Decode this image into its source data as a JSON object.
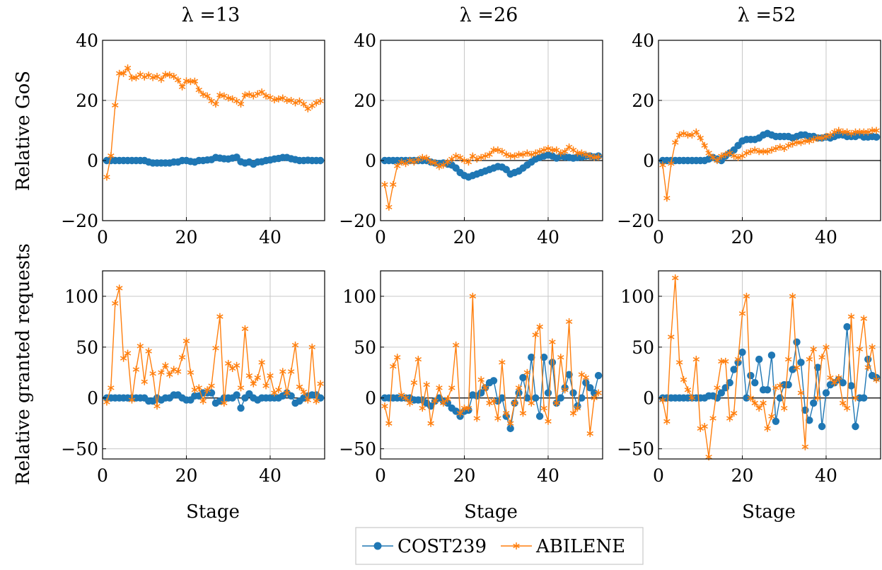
{
  "colors": {
    "cost": "#1f77b4",
    "abilene": "#ff7f0e",
    "grid": "#c8c8c8"
  },
  "legend": {
    "items": [
      "COST239",
      "ABILENE"
    ]
  },
  "chart_data": [
    {
      "type": "line",
      "panel": "gos-13",
      "title": "λ =13",
      "xlabel": "",
      "ylabel": "Relative GoS",
      "xlim": [
        0,
        53
      ],
      "ylim": [
        -20,
        40
      ],
      "xticks": [
        0,
        20,
        40
      ],
      "yticks": [
        -20,
        0,
        20,
        40
      ],
      "grid": true,
      "series": [
        {
          "name": "COST239",
          "x_start": 1,
          "values": [
            0,
            0,
            0,
            0,
            0,
            0,
            0,
            0,
            0,
            0,
            -0.5,
            -0.8,
            -0.8,
            -0.8,
            -0.8,
            -0.8,
            -0.5,
            -0.5,
            0,
            0,
            -0.3,
            -0.5,
            0,
            0,
            0.2,
            0.3,
            1,
            0.8,
            0.6,
            0.5,
            0.8,
            1.1,
            -0.4,
            -0.8,
            -0.5,
            -1.2,
            -0.5,
            -0.4,
            0,
            0.2,
            0.5,
            0.7,
            1,
            1,
            0.6,
            0.3,
            0,
            0,
            0.1,
            0,
            0,
            0
          ]
        },
        {
          "name": "ABILENE",
          "x_start": 1,
          "values": [
            -5.5,
            1.6,
            18.4,
            29,
            29,
            30.8,
            27.5,
            27.6,
            28.6,
            27.8,
            28.4,
            27.6,
            28,
            27,
            28.6,
            28.5,
            28,
            26.8,
            24.5,
            26.5,
            26.3,
            26.4,
            23.5,
            22,
            21.5,
            19.8,
            18.8,
            21.8,
            21.5,
            20.8,
            20.5,
            19.8,
            18.8,
            21.8,
            22,
            21.5,
            22.2,
            22.8,
            21.5,
            21,
            20.2,
            20.5,
            20.8,
            20,
            20,
            19.2,
            19.8,
            18.8,
            17.2,
            18.2,
            19.2,
            19.8
          ]
        }
      ]
    },
    {
      "type": "line",
      "panel": "gos-26",
      "title": "λ =26",
      "xlabel": "",
      "ylabel": "",
      "xlim": [
        0,
        53
      ],
      "ylim": [
        -20,
        40
      ],
      "xticks": [
        0,
        20,
        40
      ],
      "yticks": [
        -20,
        0,
        20,
        40
      ],
      "grid": true,
      "series": [
        {
          "name": "COST239",
          "x_start": 1,
          "values": [
            0,
            0,
            0,
            0,
            0,
            0,
            0,
            0,
            0,
            0,
            0,
            -0.5,
            -0.8,
            -1,
            -0.8,
            -1.2,
            -1.5,
            -2.5,
            -4,
            -5,
            -5.5,
            -5,
            -4.5,
            -4,
            -3.5,
            -3,
            -2.5,
            -2,
            -2.2,
            -3,
            -4.5,
            -4,
            -3.5,
            -2.5,
            -1.5,
            -0.5,
            0.5,
            1,
            1.5,
            1.8,
            1.5,
            0.8,
            1.5,
            1.2,
            1,
            0.8,
            1,
            1.2,
            1.5,
            1.5,
            1.2,
            1.5
          ]
        },
        {
          "name": "ABILENE",
          "x_start": 1,
          "values": [
            -8,
            -15.5,
            -8,
            -1.8,
            -0.5,
            -1,
            0,
            -0.5,
            0.3,
            1,
            0.8,
            -0.5,
            -0.8,
            -2,
            -1.5,
            -0.5,
            0.5,
            1.5,
            1,
            0,
            -0.5,
            1.5,
            0.5,
            1,
            1.5,
            2,
            3.5,
            3.5,
            3,
            2,
            1.5,
            1.5,
            2,
            2,
            2.5,
            2,
            2.5,
            3,
            3.5,
            4,
            3.5,
            3.5,
            2.5,
            3,
            4.5,
            3.5,
            2.5,
            2.5,
            2,
            1.5,
            1,
            1.2
          ]
        }
      ]
    },
    {
      "type": "line",
      "panel": "gos-52",
      "title": "λ =52",
      "xlabel": "",
      "ylabel": "",
      "xlim": [
        0,
        53
      ],
      "ylim": [
        -20,
        40
      ],
      "xticks": [
        0,
        20,
        40
      ],
      "yticks": [
        -20,
        0,
        20,
        40
      ],
      "grid": true,
      "series": [
        {
          "name": "COST239",
          "x_start": 1,
          "values": [
            0,
            0,
            0,
            0,
            0,
            0,
            0,
            0,
            0,
            0,
            0,
            0.5,
            1,
            0.5,
            0,
            1.5,
            2.5,
            3.5,
            5,
            6.5,
            7,
            7,
            7,
            7.5,
            8.5,
            9,
            8.5,
            8,
            8,
            8,
            8,
            7.5,
            8,
            8.5,
            8.5,
            8,
            8,
            7.5,
            7.5,
            7.8,
            7.5,
            8,
            8.5,
            8.5,
            8,
            8,
            8,
            8.5,
            7.8,
            7.8,
            8,
            7.8
          ]
        },
        {
          "name": "ABILENE",
          "x_start": 1,
          "values": [
            -1.5,
            -12.5,
            -1,
            6,
            8.5,
            9,
            8.5,
            8.5,
            9.5,
            7.5,
            5,
            2.5,
            1,
            0,
            1.5,
            2,
            2.5,
            1.5,
            1,
            1.5,
            2.5,
            3,
            3.5,
            3,
            3,
            3,
            3.5,
            4,
            4.5,
            4,
            5,
            5.5,
            6,
            6,
            6.5,
            6.5,
            7,
            7.5,
            7.5,
            8,
            8.5,
            9.5,
            10,
            9.5,
            9.5,
            9,
            9.5,
            9.5,
            9.5,
            9.5,
            10,
            10
          ]
        }
      ]
    },
    {
      "type": "line",
      "panel": "req-13",
      "title": "",
      "xlabel": "Stage",
      "ylabel": "Relative granted requests",
      "xlim": [
        0,
        53
      ],
      "ylim": [
        -60,
        125
      ],
      "xticks": [
        0,
        20,
        40
      ],
      "yticks": [
        -50,
        0,
        50,
        100
      ],
      "grid": true,
      "series": [
        {
          "name": "COST239",
          "x_start": 1,
          "values": [
            0,
            0,
            0,
            0,
            0,
            0,
            0,
            0,
            0,
            0,
            -3,
            -3,
            0,
            -2,
            0,
            0,
            3,
            3,
            0,
            -2,
            -2,
            2,
            2,
            5,
            5,
            5,
            -5,
            -3,
            0,
            0,
            0,
            3,
            -10,
            0,
            4,
            0,
            -2,
            0,
            0,
            0,
            0,
            0,
            2,
            5,
            2,
            -5,
            -3,
            0,
            2,
            3,
            3,
            0
          ]
        },
        {
          "name": "ABILENE",
          "x_start": 1,
          "values": [
            -4,
            10,
            93,
            108,
            39,
            44,
            -2,
            28,
            51,
            16,
            46,
            24,
            -8,
            25,
            32,
            23,
            28,
            26,
            40,
            56,
            25,
            8,
            10,
            -3,
            8,
            12,
            49,
            80,
            -5,
            34,
            29,
            32,
            10,
            68,
            22,
            14,
            20,
            35,
            12,
            22,
            5,
            8,
            26,
            5,
            26,
            52,
            11,
            6,
            -2,
            50,
            -3,
            14
          ]
        }
      ]
    },
    {
      "type": "line",
      "panel": "req-26",
      "title": "",
      "xlabel": "Stage",
      "ylabel": "",
      "xlim": [
        0,
        53
      ],
      "ylim": [
        -60,
        125
      ],
      "xticks": [
        0,
        20,
        40
      ],
      "yticks": [
        -50,
        0,
        50,
        100
      ],
      "grid": true,
      "series": [
        {
          "name": "COST239",
          "x_start": 1,
          "values": [
            0,
            0,
            0,
            0,
            0,
            0,
            0,
            -2,
            -2,
            -2,
            -5,
            -8,
            -3,
            0,
            -3,
            -5,
            -10,
            -13,
            -18,
            -13,
            -12,
            3,
            2,
            5,
            10,
            15,
            17,
            -3,
            0,
            -18,
            -30,
            -5,
            5,
            20,
            0,
            40,
            0,
            -18,
            40,
            5,
            35,
            -5,
            0,
            10,
            23,
            5,
            -8,
            0,
            15,
            10,
            5,
            22
          ]
        },
        {
          "name": "ABILENE",
          "x_start": 1,
          "values": [
            -8,
            -25,
            31,
            40,
            3,
            0,
            -5,
            15,
            38,
            -10,
            13,
            -25,
            -3,
            10,
            -5,
            -1,
            10,
            52,
            -15,
            -10,
            -10,
            100,
            -20,
            18,
            10,
            -5,
            -3,
            -20,
            35,
            -15,
            -25,
            -5,
            10,
            -15,
            25,
            -5,
            62,
            70,
            -10,
            -23,
            55,
            -5,
            40,
            8,
            75,
            -15,
            -10,
            23,
            20,
            -35,
            0,
            5
          ]
        }
      ]
    },
    {
      "type": "line",
      "panel": "req-52",
      "title": "",
      "xlabel": "Stage",
      "ylabel": "",
      "xlim": [
        0,
        53
      ],
      "ylim": [
        -60,
        125
      ],
      "xticks": [
        0,
        20,
        40
      ],
      "yticks": [
        -50,
        0,
        50,
        100
      ],
      "grid": true,
      "series": [
        {
          "name": "COST239",
          "x_start": 1,
          "values": [
            0,
            0,
            0,
            0,
            0,
            0,
            0,
            0,
            0,
            0,
            0,
            2,
            2,
            0,
            5,
            10,
            15,
            28,
            35,
            45,
            0,
            22,
            15,
            38,
            8,
            8,
            42,
            -23,
            0,
            13,
            13,
            28,
            55,
            35,
            -12,
            -22,
            -5,
            30,
            -28,
            5,
            13,
            15,
            18,
            15,
            70,
            12,
            -28,
            0,
            0,
            38,
            22,
            20
          ]
        },
        {
          "name": "ABILENE",
          "x_start": 1,
          "values": [
            -2,
            -23,
            60,
            118,
            35,
            18,
            8,
            0,
            38,
            -30,
            -28,
            -58,
            -20,
            10,
            36,
            36,
            -20,
            -15,
            38,
            83,
            100,
            0,
            -5,
            -10,
            -5,
            -30,
            -18,
            10,
            12,
            -10,
            38,
            100,
            30,
            5,
            -48,
            38,
            48,
            0,
            40,
            50,
            20,
            15,
            20,
            -5,
            -10,
            80,
            0,
            48,
            78,
            30,
            50,
            18
          ]
        }
      ]
    }
  ]
}
